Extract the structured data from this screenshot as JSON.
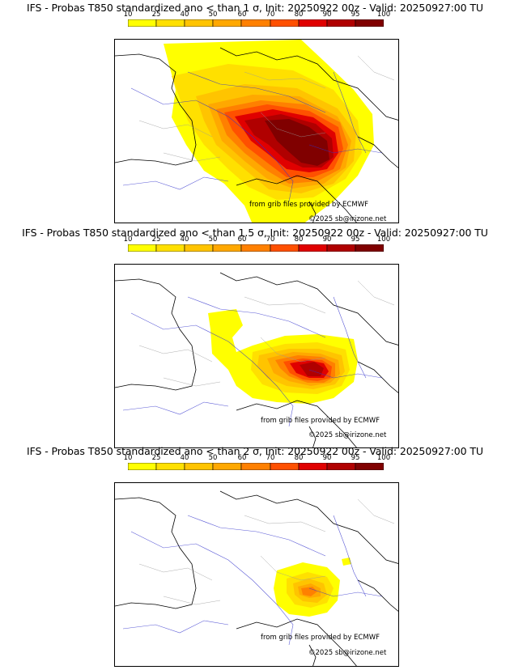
{
  "panels": [
    {
      "title": "IFS - Probas T850  standardized ano < than 1 σ, Init: 20250922 00z - Valid: 20250927:00 TU",
      "sigma": "1",
      "credit_grib": "from grib files provided by ECMWF",
      "credit_site": "©2025 sb@irizone.net"
    },
    {
      "title": "IFS - Probas T850  standardized ano < than 1.5 σ, Init: 20250922 00z - Valid: 20250927:00 TU",
      "sigma": "1.5",
      "credit_grib": "from grib files provided by ECMWF",
      "credit_site": "©2025 sb@irizone.net"
    },
    {
      "title": "IFS - Probas T850  standardized ano < than 2 σ, Init: 20250922 00z - Valid: 20250927:00 TU",
      "sigma": "2",
      "credit_grib": "from grib files provided by ECMWF",
      "credit_site": "©2025 sb@irizone.net"
    }
  ],
  "colorbar": {
    "ticks": [
      "10",
      "25",
      "40",
      "50",
      "60",
      "70",
      "80",
      "90",
      "95",
      "100"
    ],
    "colors": [
      "#ffff00",
      "#ffe000",
      "#ffc400",
      "#ffa800",
      "#ff8000",
      "#ff5000",
      "#e00000",
      "#b00000",
      "#800000"
    ]
  }
}
